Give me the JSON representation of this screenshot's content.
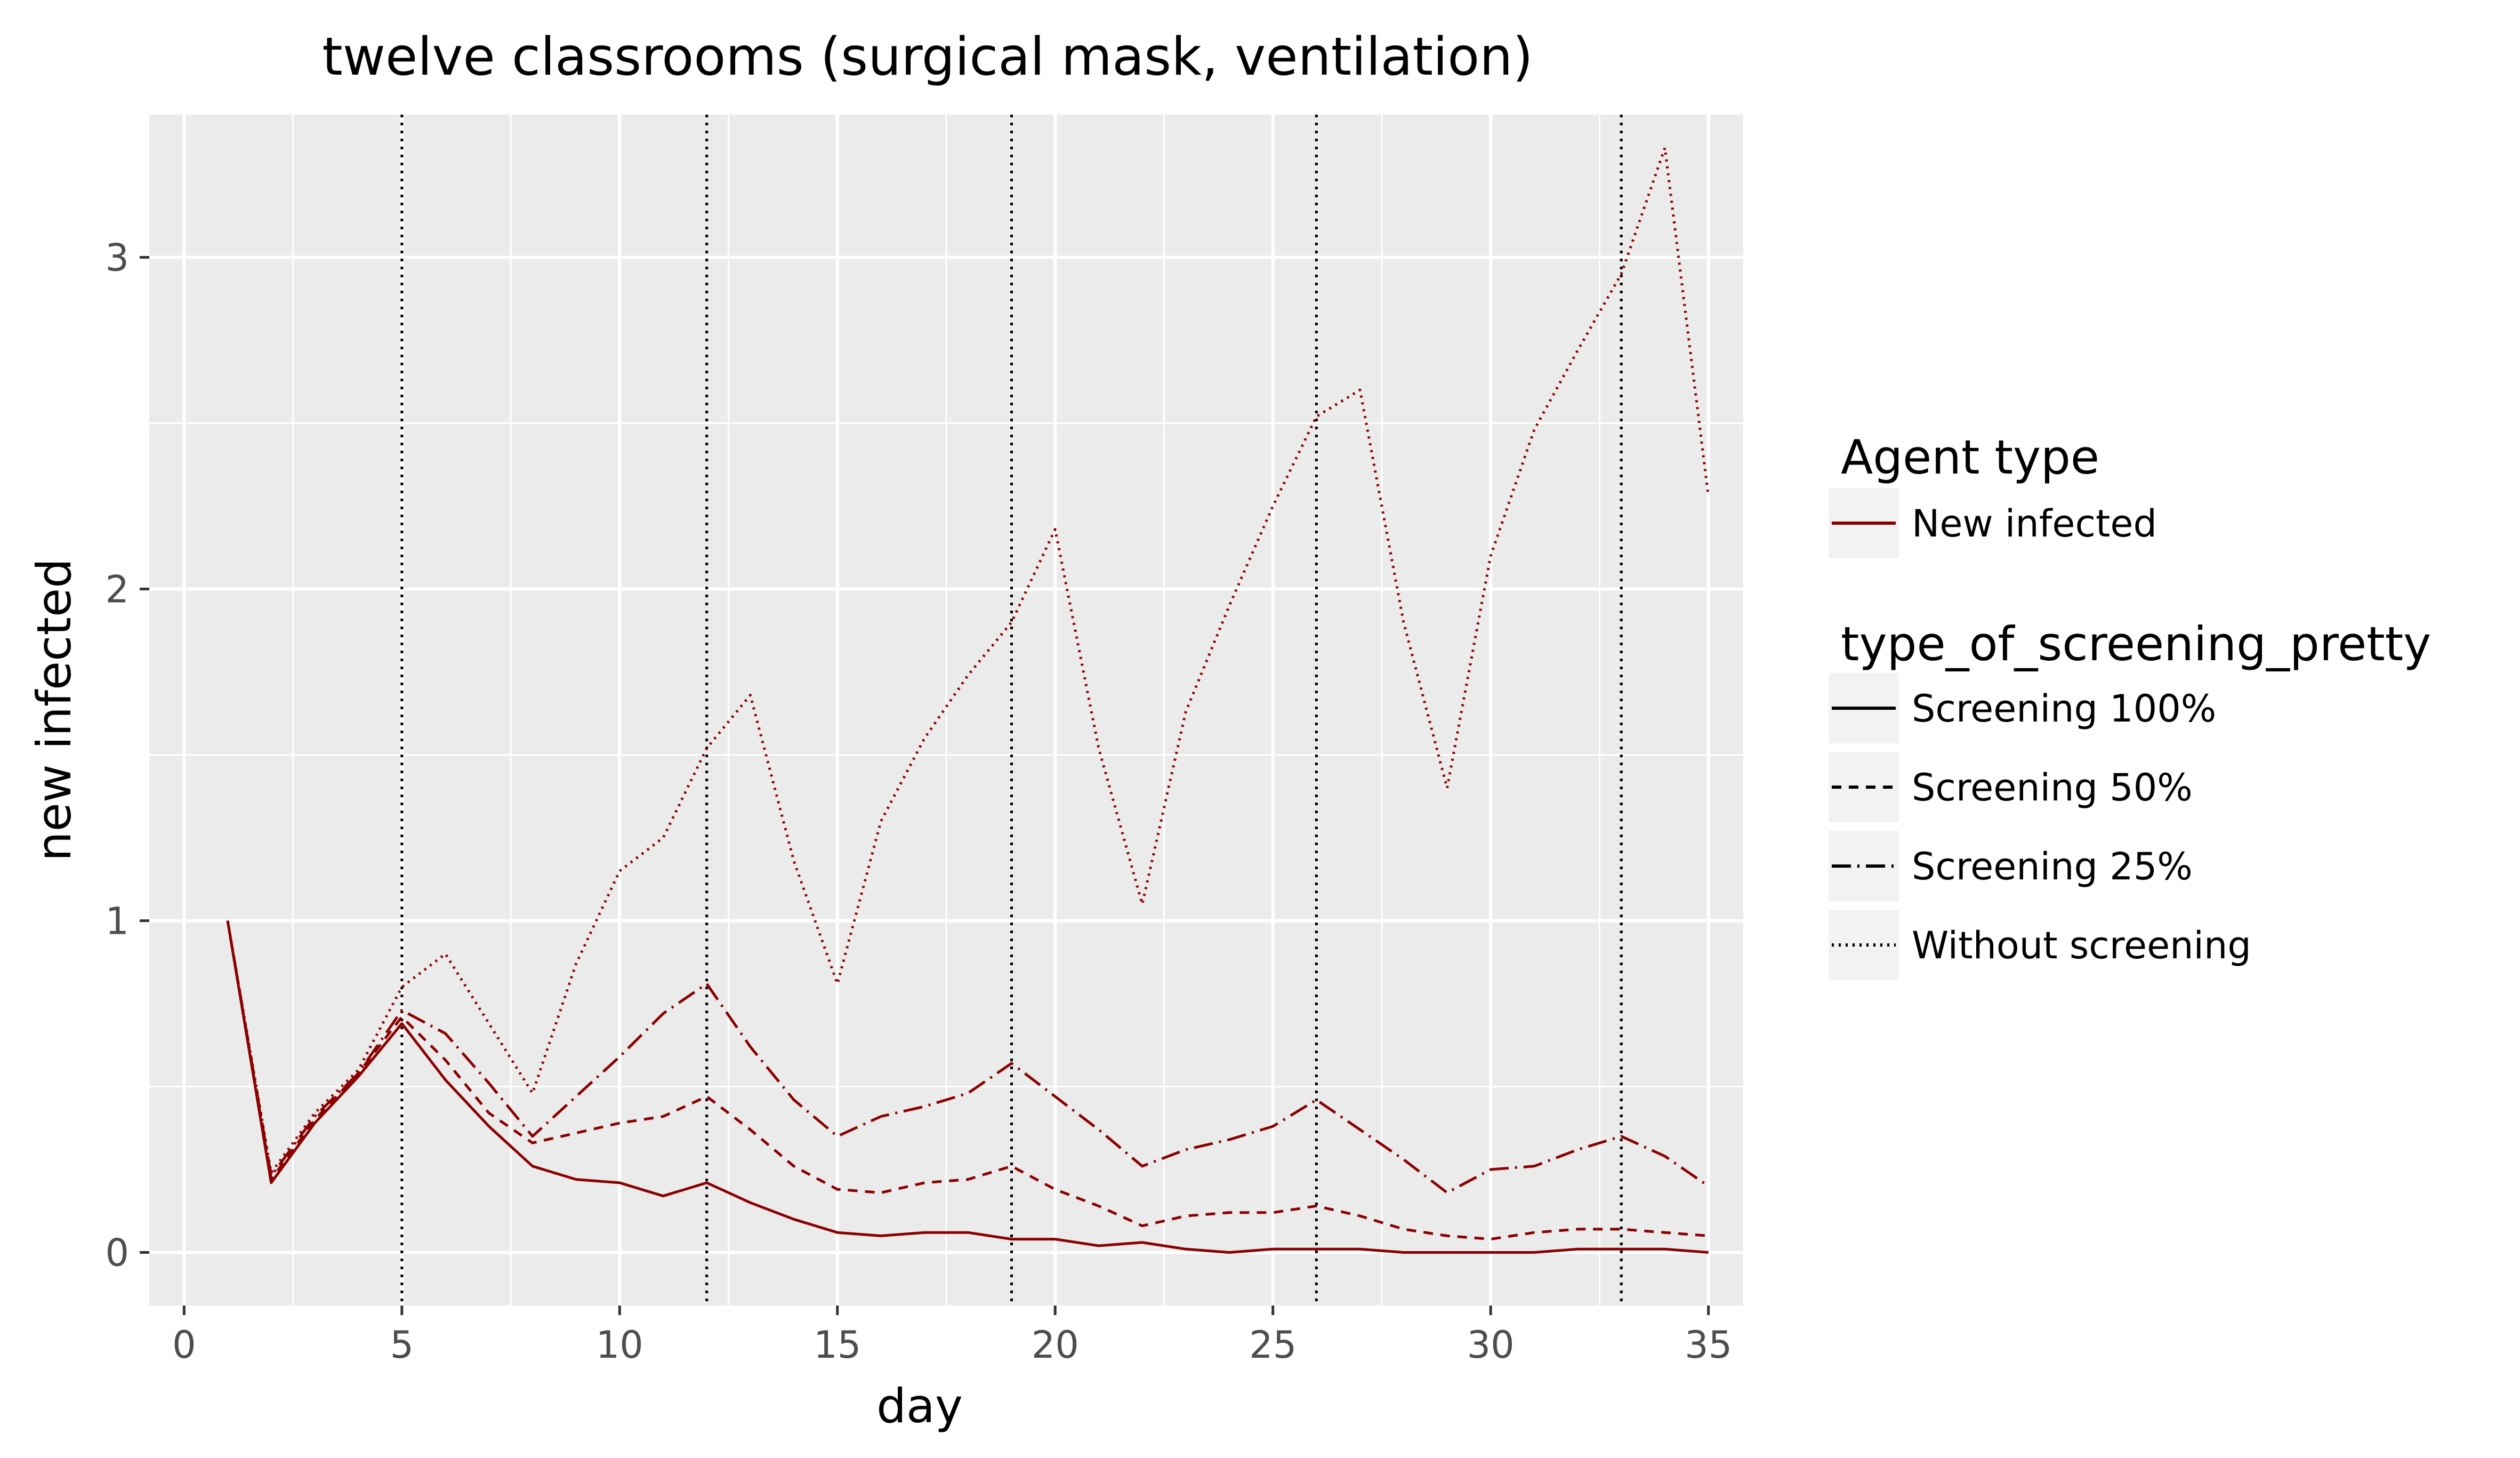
{
  "chart_data": {
    "type": "line",
    "title": "twelve classrooms (surgical mask, ventilation)",
    "xlabel": "day",
    "ylabel": "new infected",
    "xlim": [
      -0.8,
      35.8
    ],
    "ylim": [
      -0.16,
      3.43
    ],
    "xticks": [
      0,
      5,
      10,
      15,
      20,
      25,
      30,
      35
    ],
    "yticks": [
      0,
      1,
      2,
      3
    ],
    "grid": true,
    "background": "#ebebeb",
    "line_color": "#8b0000",
    "vlines": [
      5,
      12,
      19,
      26,
      33
    ],
    "legend": {
      "placement": "right",
      "color_title": "Agent type",
      "color_entries": [
        "New infected"
      ],
      "linetype_title": "type_of_screening_pretty",
      "linetype_entries": [
        "Screening 100%",
        "Screening 50%",
        "Screening 25%",
        "Without screening"
      ]
    },
    "x": [
      1,
      2,
      3,
      4,
      5,
      6,
      7,
      8,
      9,
      10,
      11,
      12,
      13,
      14,
      15,
      16,
      17,
      18,
      19,
      20,
      21,
      22,
      23,
      24,
      25,
      26,
      27,
      28,
      29,
      30,
      31,
      32,
      33,
      34,
      35
    ],
    "series": [
      {
        "name": "Screening 100%",
        "dash": "solid",
        "values": [
          1.0,
          0.21,
          0.39,
          0.53,
          0.69,
          0.52,
          0.38,
          0.26,
          0.22,
          0.21,
          0.17,
          0.21,
          0.15,
          0.1,
          0.06,
          0.05,
          0.06,
          0.06,
          0.04,
          0.04,
          0.02,
          0.03,
          0.01,
          0.0,
          0.01,
          0.01,
          0.01,
          0.0,
          0.0,
          0.0,
          0.0,
          0.01,
          0.01,
          0.01,
          0.0
        ]
      },
      {
        "name": "Screening 50%",
        "dash": "dashed",
        "values": [
          1.0,
          0.22,
          0.4,
          0.54,
          0.71,
          0.58,
          0.42,
          0.33,
          0.36,
          0.39,
          0.41,
          0.47,
          0.37,
          0.26,
          0.19,
          0.18,
          0.21,
          0.22,
          0.26,
          0.19,
          0.14,
          0.08,
          0.11,
          0.12,
          0.12,
          0.14,
          0.11,
          0.07,
          0.05,
          0.04,
          0.06,
          0.07,
          0.07,
          0.06,
          0.05
        ]
      },
      {
        "name": "Screening 25%",
        "dash": "dotdash",
        "values": [
          1.0,
          0.23,
          0.41,
          0.54,
          0.73,
          0.66,
          0.51,
          0.35,
          0.47,
          0.59,
          0.72,
          0.81,
          0.62,
          0.46,
          0.35,
          0.41,
          0.44,
          0.48,
          0.57,
          0.47,
          0.37,
          0.26,
          0.31,
          0.34,
          0.38,
          0.46,
          0.37,
          0.28,
          0.18,
          0.25,
          0.26,
          0.31,
          0.35,
          0.29,
          0.2
        ]
      },
      {
        "name": "Without screening",
        "dash": "dotted",
        "values": [
          1.0,
          0.24,
          0.42,
          0.55,
          0.8,
          0.9,
          0.69,
          0.48,
          0.87,
          1.15,
          1.25,
          1.52,
          1.68,
          1.18,
          0.81,
          1.3,
          1.55,
          1.74,
          1.9,
          2.18,
          1.52,
          1.05,
          1.63,
          1.95,
          2.25,
          2.52,
          2.6,
          1.9,
          1.4,
          2.1,
          2.48,
          2.72,
          2.95,
          3.33,
          2.28
        ]
      }
    ]
  }
}
